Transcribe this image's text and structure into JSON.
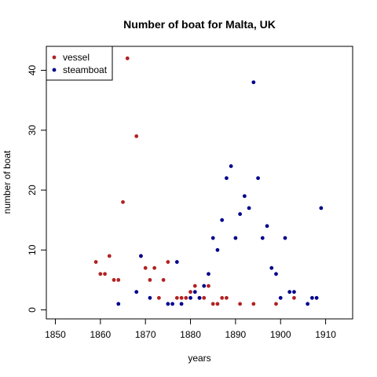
{
  "chart_data": {
    "type": "scatter",
    "title": "Number of boat for Malta, UK",
    "xlabel": "years",
    "ylabel": "number of boat",
    "xlim": [
      1848,
      1916
    ],
    "ylim": [
      -1.5,
      44
    ],
    "x_ticks": [
      1850,
      1860,
      1870,
      1880,
      1890,
      1900,
      1910
    ],
    "y_ticks": [
      0,
      10,
      20,
      30,
      40
    ],
    "grid": false,
    "legend_position": "top-left",
    "series": [
      {
        "name": "vessel",
        "color": "#b22222",
        "points": [
          [
            1859,
            8
          ],
          [
            1860,
            6
          ],
          [
            1861,
            6
          ],
          [
            1862,
            9
          ],
          [
            1863,
            5
          ],
          [
            1864,
            5
          ],
          [
            1865,
            18
          ],
          [
            1866,
            42
          ],
          [
            1868,
            29
          ],
          [
            1869,
            9
          ],
          [
            1870,
            7
          ],
          [
            1871,
            5
          ],
          [
            1872,
            7
          ],
          [
            1873,
            2
          ],
          [
            1874,
            5
          ],
          [
            1875,
            8
          ],
          [
            1877,
            2
          ],
          [
            1878,
            2
          ],
          [
            1879,
            2
          ],
          [
            1880,
            3
          ],
          [
            1881,
            4
          ],
          [
            1882,
            2
          ],
          [
            1883,
            2
          ],
          [
            1884,
            4
          ],
          [
            1885,
            1
          ],
          [
            1886,
            1
          ],
          [
            1887,
            2
          ],
          [
            1888,
            2
          ],
          [
            1891,
            1
          ],
          [
            1894,
            1
          ],
          [
            1899,
            1
          ],
          [
            1903,
            2
          ]
        ]
      },
      {
        "name": "steamboat",
        "color": "#00008b",
        "points": [
          [
            1864,
            1
          ],
          [
            1868,
            3
          ],
          [
            1869,
            9
          ],
          [
            1871,
            2
          ],
          [
            1875,
            1
          ],
          [
            1876,
            1
          ],
          [
            1877,
            8
          ],
          [
            1878,
            1
          ],
          [
            1880,
            2
          ],
          [
            1881,
            3
          ],
          [
            1882,
            2
          ],
          [
            1883,
            4
          ],
          [
            1884,
            6
          ],
          [
            1885,
            12
          ],
          [
            1886,
            10
          ],
          [
            1887,
            15
          ],
          [
            1888,
            22
          ],
          [
            1889,
            24
          ],
          [
            1890,
            12
          ],
          [
            1891,
            16
          ],
          [
            1892,
            19
          ],
          [
            1893,
            17
          ],
          [
            1894,
            38
          ],
          [
            1895,
            22
          ],
          [
            1896,
            12
          ],
          [
            1897,
            14
          ],
          [
            1898,
            7
          ],
          [
            1899,
            6
          ],
          [
            1900,
            2
          ],
          [
            1901,
            12
          ],
          [
            1902,
            3
          ],
          [
            1903,
            3
          ],
          [
            1906,
            1
          ],
          [
            1907,
            2
          ],
          [
            1908,
            2
          ],
          [
            1909,
            17
          ]
        ]
      }
    ]
  }
}
